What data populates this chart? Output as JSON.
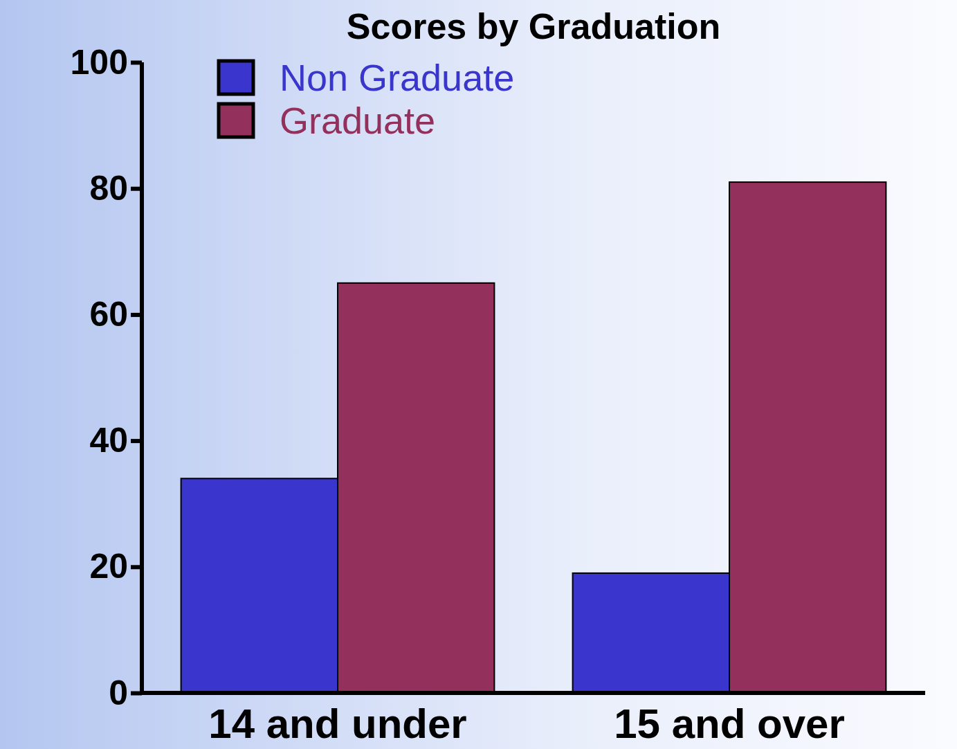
{
  "chart_data": {
    "type": "bar",
    "title": "Scores by Graduation",
    "categories": [
      "14 and under",
      "15 and over"
    ],
    "series": [
      {
        "name": "Non Graduate",
        "color": "#3a35cc",
        "values": [
          34,
          19
        ]
      },
      {
        "name": "Graduate",
        "color": "#94305c",
        "values": [
          65,
          81
        ]
      }
    ],
    "ylim": [
      0,
      100
    ],
    "yticks": [
      0,
      20,
      40,
      60,
      80,
      100
    ],
    "legend": "top left"
  }
}
